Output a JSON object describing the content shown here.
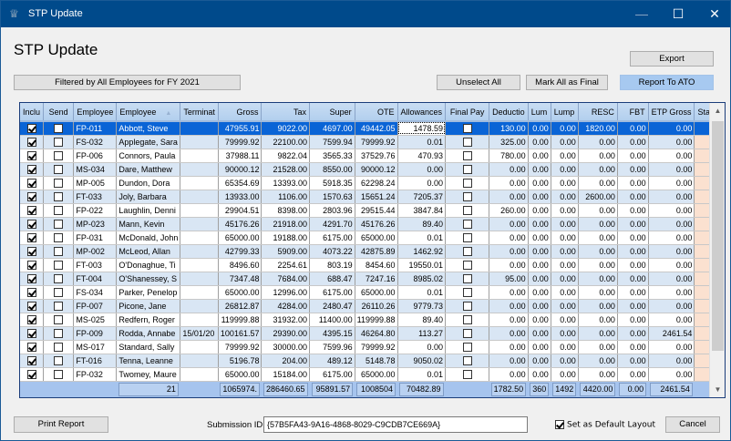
{
  "window": {
    "title": "STP Update",
    "controls": {
      "minimize": "—",
      "maximize": "☐",
      "close": "✕"
    }
  },
  "page_title": "STP Update",
  "filter_label": "Filtered by All Employees for FY 2021",
  "toolbar": {
    "export": "Export",
    "unselect_all": "Unselect All",
    "mark_all_final": "Mark All as Final",
    "report_to_ato": "Report To ATO"
  },
  "grid": {
    "columns": [
      "Inclu",
      "Send",
      "Employee",
      "Employee",
      "Terminat",
      "Gross",
      "Tax",
      "Super",
      "OTE",
      "Allowances",
      "Final Pay",
      "Deductio",
      "Lum",
      "Lump",
      "RESC",
      "FBT",
      "ETP Gross",
      "Status"
    ],
    "rows": [
      {
        "include": true,
        "send": false,
        "id": "FP-011",
        "name": "Abbott, Steve",
        "term": "",
        "gross": "47955.91",
        "tax": "9022.00",
        "super": "4697.00",
        "ote": "49442.05",
        "allow": "1478.59",
        "final": false,
        "deduct": "130.00",
        "lum": "0.00",
        "lump": "0.00",
        "resc": "1820.00",
        "fbt": "0.00",
        "etp": "0.00",
        "status": ""
      },
      {
        "include": true,
        "send": false,
        "id": "FS-032",
        "name": "Applegate, Sara",
        "term": "",
        "gross": "79999.92",
        "tax": "22100.00",
        "super": "7599.94",
        "ote": "79999.92",
        "allow": "0.01",
        "final": false,
        "deduct": "325.00",
        "lum": "0.00",
        "lump": "0.00",
        "resc": "0.00",
        "fbt": "0.00",
        "etp": "0.00",
        "status": ""
      },
      {
        "include": true,
        "send": false,
        "id": "FP-006",
        "name": "Connors, Paula",
        "term": "",
        "gross": "37988.11",
        "tax": "9822.04",
        "super": "3565.33",
        "ote": "37529.76",
        "allow": "470.93",
        "final": false,
        "deduct": "780.00",
        "lum": "0.00",
        "lump": "0.00",
        "resc": "0.00",
        "fbt": "0.00",
        "etp": "0.00",
        "status": ""
      },
      {
        "include": true,
        "send": false,
        "id": "MS-034",
        "name": "Dare, Matthew",
        "term": "",
        "gross": "90000.12",
        "tax": "21528.00",
        "super": "8550.00",
        "ote": "90000.12",
        "allow": "0.00",
        "final": false,
        "deduct": "0.00",
        "lum": "0.00",
        "lump": "0.00",
        "resc": "0.00",
        "fbt": "0.00",
        "etp": "0.00",
        "status": ""
      },
      {
        "include": true,
        "send": false,
        "id": "MP-005",
        "name": "Dundon, Dora",
        "term": "",
        "gross": "65354.69",
        "tax": "13393.00",
        "super": "5918.35",
        "ote": "62298.24",
        "allow": "0.00",
        "final": false,
        "deduct": "0.00",
        "lum": "0.00",
        "lump": "0.00",
        "resc": "0.00",
        "fbt": "0.00",
        "etp": "0.00",
        "status": ""
      },
      {
        "include": true,
        "send": false,
        "id": "FT-033",
        "name": "Joly, Barbara",
        "term": "",
        "gross": "13933.00",
        "tax": "1106.00",
        "super": "1570.63",
        "ote": "15651.24",
        "allow": "7205.37",
        "final": false,
        "deduct": "0.00",
        "lum": "0.00",
        "lump": "0.00",
        "resc": "2600.00",
        "fbt": "0.00",
        "etp": "0.00",
        "status": ""
      },
      {
        "include": true,
        "send": false,
        "id": "FP-022",
        "name": "Laughlin, Denni",
        "term": "",
        "gross": "29904.51",
        "tax": "8398.00",
        "super": "2803.96",
        "ote": "29515.44",
        "allow": "3847.84",
        "final": false,
        "deduct": "260.00",
        "lum": "0.00",
        "lump": "0.00",
        "resc": "0.00",
        "fbt": "0.00",
        "etp": "0.00",
        "status": ""
      },
      {
        "include": true,
        "send": false,
        "id": "MP-023",
        "name": "Mann, Kevin",
        "term": "",
        "gross": "45176.26",
        "tax": "21918.00",
        "super": "4291.70",
        "ote": "45176.26",
        "allow": "89.40",
        "final": false,
        "deduct": "0.00",
        "lum": "0.00",
        "lump": "0.00",
        "resc": "0.00",
        "fbt": "0.00",
        "etp": "0.00",
        "status": ""
      },
      {
        "include": true,
        "send": false,
        "id": "FP-031",
        "name": "McDonald, John",
        "term": "",
        "gross": "65000.00",
        "tax": "19188.00",
        "super": "6175.00",
        "ote": "65000.00",
        "allow": "0.01",
        "final": false,
        "deduct": "0.00",
        "lum": "0.00",
        "lump": "0.00",
        "resc": "0.00",
        "fbt": "0.00",
        "etp": "0.00",
        "status": ""
      },
      {
        "include": true,
        "send": false,
        "id": "MP-002",
        "name": "McLeod, Allan",
        "term": "",
        "gross": "42799.33",
        "tax": "5909.00",
        "super": "4073.22",
        "ote": "42875.89",
        "allow": "1462.92",
        "final": false,
        "deduct": "0.00",
        "lum": "0.00",
        "lump": "0.00",
        "resc": "0.00",
        "fbt": "0.00",
        "etp": "0.00",
        "status": ""
      },
      {
        "include": true,
        "send": false,
        "id": "FT-003",
        "name": "O'Donaghue, Ti",
        "term": "",
        "gross": "8496.60",
        "tax": "2254.61",
        "super": "803.19",
        "ote": "8454.60",
        "allow": "19550.01",
        "final": false,
        "deduct": "0.00",
        "lum": "0.00",
        "lump": "0.00",
        "resc": "0.00",
        "fbt": "0.00",
        "etp": "0.00",
        "status": ""
      },
      {
        "include": true,
        "send": false,
        "id": "FT-004",
        "name": "O'Shanessey, S",
        "term": "",
        "gross": "7347.48",
        "tax": "7684.00",
        "super": "688.47",
        "ote": "7247.16",
        "allow": "8985.02",
        "final": false,
        "deduct": "95.00",
        "lum": "0.00",
        "lump": "0.00",
        "resc": "0.00",
        "fbt": "0.00",
        "etp": "0.00",
        "status": ""
      },
      {
        "include": true,
        "send": false,
        "id": "FS-034",
        "name": "Parker, Penelop",
        "term": "",
        "gross": "65000.00",
        "tax": "12996.00",
        "super": "6175.00",
        "ote": "65000.00",
        "allow": "0.01",
        "final": false,
        "deduct": "0.00",
        "lum": "0.00",
        "lump": "0.00",
        "resc": "0.00",
        "fbt": "0.00",
        "etp": "0.00",
        "status": ""
      },
      {
        "include": true,
        "send": false,
        "id": "FP-007",
        "name": "Picone, Jane",
        "term": "",
        "gross": "26812.87",
        "tax": "4284.00",
        "super": "2480.47",
        "ote": "26110.26",
        "allow": "9779.73",
        "final": false,
        "deduct": "0.00",
        "lum": "0.00",
        "lump": "0.00",
        "resc": "0.00",
        "fbt": "0.00",
        "etp": "0.00",
        "status": ""
      },
      {
        "include": true,
        "send": false,
        "id": "MS-025",
        "name": "Redfern, Roger",
        "term": "",
        "gross": "119999.88",
        "tax": "31932.00",
        "super": "11400.00",
        "ote": "119999.88",
        "allow": "89.40",
        "final": false,
        "deduct": "0.00",
        "lum": "0.00",
        "lump": "0.00",
        "resc": "0.00",
        "fbt": "0.00",
        "etp": "0.00",
        "status": ""
      },
      {
        "include": true,
        "send": false,
        "id": "FP-009",
        "name": "Rodda, Annabe",
        "term": "15/01/20",
        "gross": "100161.57",
        "tax": "29390.00",
        "super": "4395.15",
        "ote": "46264.80",
        "allow": "113.27",
        "final": false,
        "deduct": "0.00",
        "lum": "0.00",
        "lump": "0.00",
        "resc": "0.00",
        "fbt": "0.00",
        "etp": "2461.54",
        "status": ""
      },
      {
        "include": true,
        "send": false,
        "id": "MS-017",
        "name": "Standard, Sally",
        "term": "",
        "gross": "79999.92",
        "tax": "30000.00",
        "super": "7599.96",
        "ote": "79999.92",
        "allow": "0.00",
        "final": false,
        "deduct": "0.00",
        "lum": "0.00",
        "lump": "0.00",
        "resc": "0.00",
        "fbt": "0.00",
        "etp": "0.00",
        "status": ""
      },
      {
        "include": true,
        "send": false,
        "id": "FT-016",
        "name": "Tenna, Leanne",
        "term": "",
        "gross": "5196.78",
        "tax": "204.00",
        "super": "489.12",
        "ote": "5148.78",
        "allow": "9050.02",
        "final": false,
        "deduct": "0.00",
        "lum": "0.00",
        "lump": "0.00",
        "resc": "0.00",
        "fbt": "0.00",
        "etp": "0.00",
        "status": ""
      },
      {
        "include": true,
        "send": false,
        "id": "FP-032",
        "name": "Twomey, Maure",
        "term": "",
        "gross": "65000.00",
        "tax": "15184.00",
        "super": "6175.00",
        "ote": "65000.00",
        "allow": "0.01",
        "final": false,
        "deduct": "0.00",
        "lum": "0.00",
        "lump": "0.00",
        "resc": "0.00",
        "fbt": "0.00",
        "etp": "0.00",
        "status": ""
      }
    ],
    "totals": {
      "count": "21",
      "gross": "1065974.",
      "tax": "286460.65",
      "super": "95891.57",
      "ote": "1008504",
      "allow": "70482.89",
      "deduct": "1782.50",
      "lum": "360",
      "lump": "1492",
      "resc": "4420.00",
      "fbt": "0.00",
      "etp": "2461.54"
    },
    "selected_row": 0,
    "colors": {
      "selected": "#0a64d6",
      "alt_row": "#d9e6f4",
      "status_cell": "#fbe1d0",
      "totals": "#a6c4ee"
    }
  },
  "footer": {
    "print_report": "Print Report",
    "submission_label": "Submission ID",
    "submission_id": "{57B5FA43-9A16-4868-8029-C9CDB7CE669A}",
    "default_layout_label": "Set as Default Layout",
    "default_layout_checked": true,
    "cancel": "Cancel"
  }
}
